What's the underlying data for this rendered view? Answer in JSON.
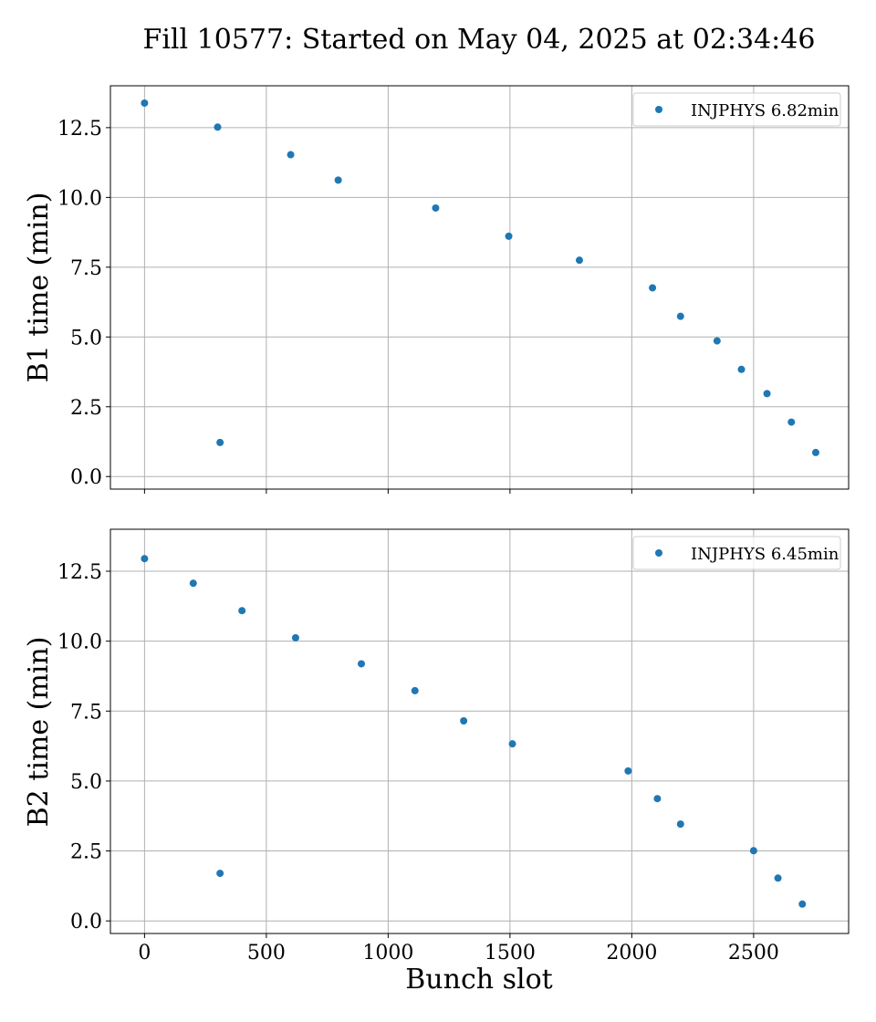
{
  "figure_title": "Fill 10577: Started on May 04, 2025 at 02:34:46",
  "xlabel": "Bunch slot",
  "colors": {
    "marker": "#1f77b4",
    "grid": "#b0b0b0",
    "axes": "#000000",
    "background": "#ffffff",
    "legend_border": "#cccccc"
  },
  "chart_data": [
    {
      "type": "scatter",
      "ylabel": "B1 time (min)",
      "xlabel": "",
      "xlim": [
        -140,
        2890
      ],
      "ylim": [
        -0.45,
        14.0
      ],
      "x_ticks": [
        0,
        500,
        1000,
        1500,
        2000,
        2500
      ],
      "x_tick_labels_shown": false,
      "y_ticks": [
        0.0,
        2.5,
        5.0,
        7.5,
        10.0,
        12.5
      ],
      "y_tick_labels": [
        "0.0",
        "2.5",
        "5.0",
        "7.5",
        "10.0",
        "12.5"
      ],
      "grid": true,
      "legend_position": "top-right",
      "series": [
        {
          "name": "INJPHYS 6.82min",
          "x": [
            0,
            300,
            310,
            600,
            795,
            1195,
            1495,
            1785,
            2085,
            2200,
            2350,
            2450,
            2555,
            2655,
            2755
          ],
          "y": [
            13.38,
            12.52,
            1.22,
            11.53,
            10.62,
            9.62,
            8.61,
            7.75,
            6.76,
            5.74,
            4.86,
            3.84,
            2.97,
            1.95,
            0.86
          ]
        }
      ]
    },
    {
      "type": "scatter",
      "ylabel": "B2 time (min)",
      "xlabel": "Bunch slot",
      "xlim": [
        -140,
        2890
      ],
      "ylim": [
        -0.45,
        14.0
      ],
      "x_ticks": [
        0,
        500,
        1000,
        1500,
        2000,
        2500
      ],
      "x_tick_labels": [
        "0",
        "500",
        "1000",
        "1500",
        "2000",
        "2500"
      ],
      "x_tick_labels_shown": true,
      "y_ticks": [
        0.0,
        2.5,
        5.0,
        7.5,
        10.0,
        12.5
      ],
      "y_tick_labels": [
        "0.0",
        "2.5",
        "5.0",
        "7.5",
        "10.0",
        "12.5"
      ],
      "grid": true,
      "legend_position": "top-right",
      "series": [
        {
          "name": "INJPHYS 6.45min",
          "x": [
            0,
            200,
            310,
            400,
            620,
            890,
            1110,
            1310,
            1510,
            1985,
            2105,
            2200,
            2500,
            2600,
            2700
          ],
          "y": [
            12.95,
            12.07,
            1.7,
            11.09,
            10.12,
            9.19,
            8.23,
            7.15,
            6.33,
            5.36,
            4.37,
            3.46,
            2.51,
            1.53,
            0.6
          ]
        }
      ]
    }
  ]
}
